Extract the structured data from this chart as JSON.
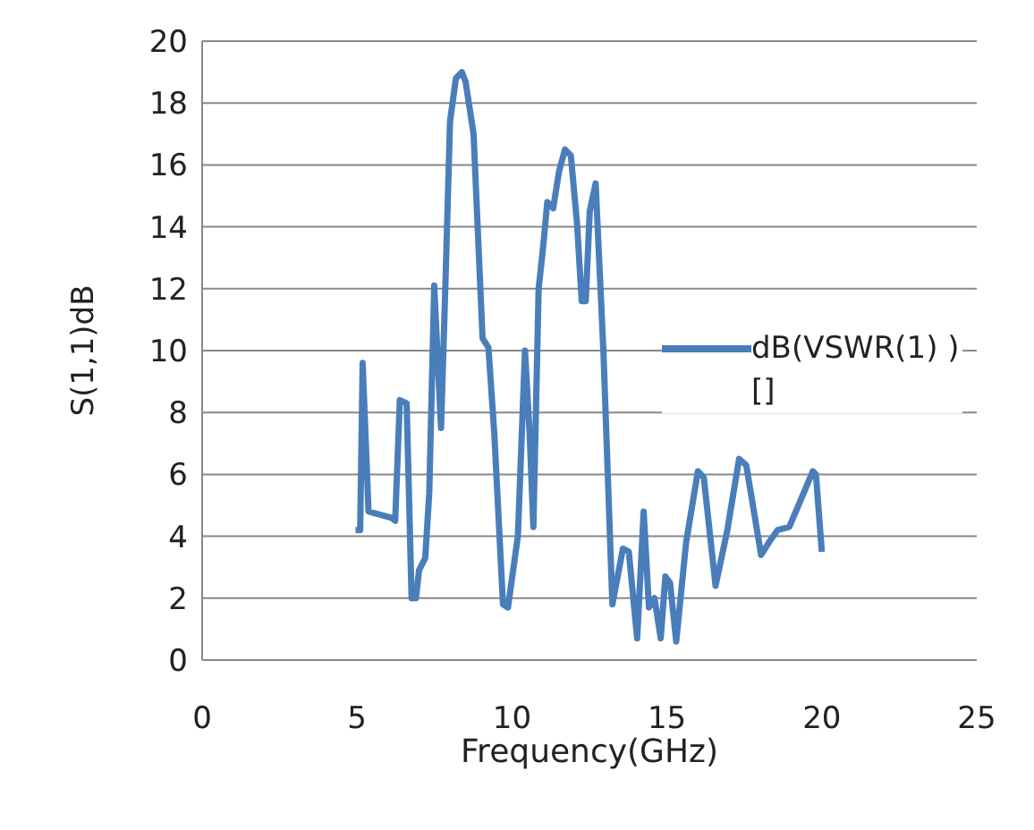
{
  "chart_data": {
    "type": "line",
    "xlabel": "Frequency(GHz)",
    "ylabel": "S(1,1)dB",
    "x": [
      4.95,
      5.1,
      5.18,
      5.37,
      6.1,
      6.23,
      6.38,
      6.6,
      6.76,
      6.9,
      7.0,
      7.2,
      7.33,
      7.49,
      7.58,
      7.71,
      7.85,
      8.0,
      8.19,
      8.38,
      8.5,
      8.76,
      9.05,
      9.24,
      9.43,
      9.71,
      9.87,
      10.19,
      10.42,
      10.57,
      10.69,
      10.86,
      11.0,
      11.14,
      11.33,
      11.52,
      11.71,
      11.9,
      12.1,
      12.25,
      12.38,
      12.51,
      12.7,
      12.95,
      13.24,
      13.58,
      13.77,
      14.04,
      14.25,
      14.42,
      14.6,
      14.8,
      14.95,
      15.1,
      15.3,
      15.62,
      16.0,
      16.19,
      16.57,
      16.95,
      17.33,
      17.56,
      18.04,
      18.29,
      18.57,
      18.95,
      19.33,
      19.71,
      19.81,
      20.0
    ],
    "series": [
      {
        "name": "dB(VSWR(1) ) []",
        "color": "#4a7ebb",
        "values": [
          4.2,
          4.2,
          9.6,
          4.8,
          4.6,
          4.5,
          8.4,
          8.3,
          2.0,
          2.0,
          2.9,
          3.3,
          5.4,
          12.1,
          10.2,
          7.5,
          12.1,
          17.4,
          18.8,
          19.0,
          18.7,
          17.0,
          10.4,
          10.1,
          7.3,
          1.8,
          1.7,
          4.0,
          10.0,
          7.3,
          4.3,
          12.0,
          13.3,
          14.8,
          14.6,
          15.8,
          16.5,
          16.3,
          14.1,
          11.6,
          11.6,
          14.5,
          15.4,
          10.0,
          1.8,
          3.6,
          3.5,
          0.7,
          4.8,
          1.7,
          2.0,
          0.7,
          2.7,
          2.5,
          0.6,
          3.8,
          6.1,
          5.9,
          2.4,
          4.2,
          6.5,
          6.3,
          3.4,
          3.8,
          4.2,
          4.3,
          5.2,
          6.1,
          6.0,
          3.5
        ]
      }
    ],
    "xlim": [
      0,
      25
    ],
    "xticks": [
      0,
      5,
      10,
      15,
      20,
      25
    ],
    "ylim": [
      0,
      20
    ],
    "yticks": [
      0,
      2,
      4,
      6,
      8,
      10,
      12,
      14,
      16,
      18,
      20
    ],
    "grid": "y",
    "legend": "right",
    "marker": "none",
    "line_style": "solid"
  }
}
